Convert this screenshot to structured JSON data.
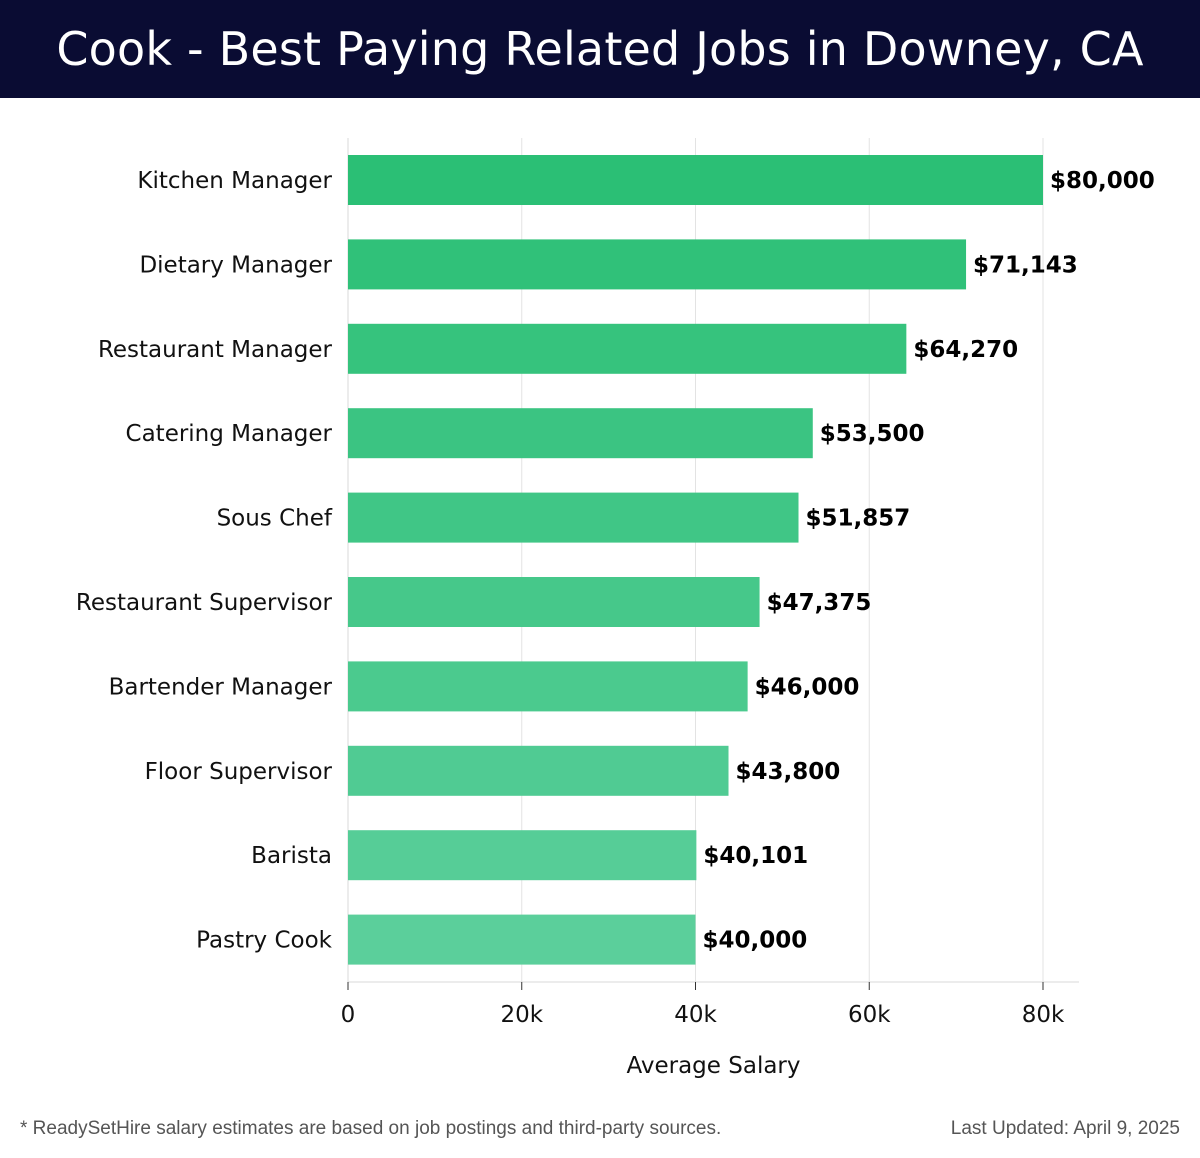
{
  "header": {
    "title": "Cook - Best Paying Related Jobs in Downey, CA"
  },
  "footer": {
    "note": "* ReadySetHire salary estimates are based on job postings and third-party sources.",
    "updated": "Last Updated: April 9, 2025"
  },
  "colors": {
    "header_bg": "#0a0c33",
    "bar_top": "#2bbf75",
    "bar_bottom": "#5bcf9b"
  },
  "chart_data": {
    "type": "bar",
    "orientation": "horizontal",
    "title": "Cook - Best Paying Related Jobs in Downey, CA",
    "xlabel": "Average Salary",
    "ylabel": "",
    "categories": [
      "Kitchen Manager",
      "Dietary Manager",
      "Restaurant Manager",
      "Catering Manager",
      "Sous Chef",
      "Restaurant Supervisor",
      "Bartender Manager",
      "Floor Supervisor",
      "Barista",
      "Pastry Cook"
    ],
    "values": [
      80000,
      71143,
      64270,
      53500,
      51857,
      47375,
      46000,
      43800,
      40101,
      40000
    ],
    "value_labels": [
      "$80,000",
      "$71,143",
      "$64,270",
      "$53,500",
      "$51,857",
      "$47,375",
      "$46,000",
      "$43,800",
      "$40,101",
      "$40,000"
    ],
    "xticks": [
      0,
      20000,
      40000,
      60000,
      80000
    ],
    "xtick_labels": [
      "0",
      "20k",
      "40k",
      "60k",
      "80k"
    ],
    "xlim": [
      0,
      84000
    ],
    "grid": "vertical"
  }
}
